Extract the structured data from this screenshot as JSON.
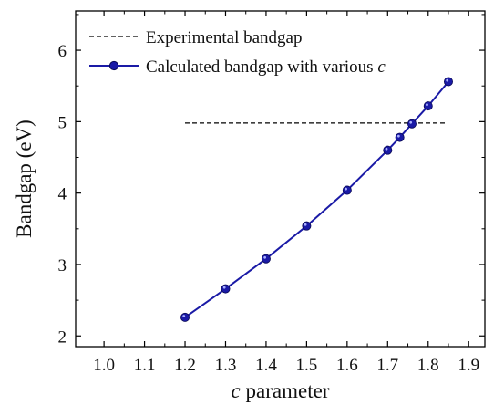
{
  "chart_data": {
    "type": "line",
    "xlabel_italic": "c",
    "xlabel_rest": " parameter",
    "ylabel": "Bandgap (eV)",
    "xlim": [
      0.93,
      1.94
    ],
    "ylim": [
      1.85,
      6.55
    ],
    "x_ticks": [
      1.0,
      1.1,
      1.2,
      1.3,
      1.4,
      1.5,
      1.6,
      1.7,
      1.8,
      1.9
    ],
    "x_tick_labels": [
      "1.0",
      "1.1",
      "1.2",
      "1.3",
      "1.4",
      "1.5",
      "1.6",
      "1.7",
      "1.8",
      "1.9"
    ],
    "y_ticks": [
      2,
      3,
      4,
      5,
      6
    ],
    "y_tick_labels": [
      "2",
      "3",
      "4",
      "5",
      "6"
    ],
    "grid": false,
    "legend_position": "top-left",
    "series": [
      {
        "name": "Experimental bandgap",
        "style": "dashed",
        "color": "#000000",
        "x": [
          1.2,
          1.85
        ],
        "y": [
          4.98,
          4.98
        ]
      },
      {
        "name_prefix": "Calculated bandgap with various ",
        "name_italic": "c",
        "style": "line-marker",
        "color": "#1a1aa6",
        "x": [
          1.2,
          1.3,
          1.4,
          1.5,
          1.6,
          1.7,
          1.73,
          1.76,
          1.8,
          1.85
        ],
        "y": [
          2.26,
          2.66,
          3.08,
          3.54,
          4.04,
          4.6,
          4.78,
          4.97,
          5.22,
          5.56
        ]
      }
    ]
  }
}
